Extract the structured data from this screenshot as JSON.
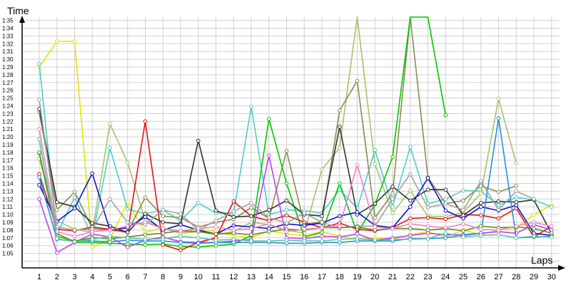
{
  "chart_data": {
    "type": "line",
    "title": "",
    "xlabel": "Laps",
    "ylabel": "Time",
    "x": [
      1,
      2,
      3,
      4,
      5,
      6,
      7,
      8,
      9,
      10,
      11,
      12,
      13,
      14,
      15,
      16,
      17,
      18,
      19,
      20,
      21,
      22,
      23,
      24,
      25,
      26,
      27,
      28,
      29,
      30
    ],
    "ylim_seconds": [
      63,
      98
    ],
    "y_ticks": [
      "1:05",
      "1:06",
      "1:07",
      "1:08",
      "1:09",
      "1:10",
      "1:11",
      "1:12",
      "1:13",
      "1:14",
      "1:15",
      "1:16",
      "1:17",
      "1:18",
      "1:19",
      "1:20",
      "1:21",
      "1:22",
      "1:23",
      "1:24",
      "1:25",
      "1:26",
      "1:27",
      "1:28",
      "1:29",
      "1:30",
      "1:31",
      "1:32",
      "1:33",
      "1:34",
      "1:35"
    ],
    "grid": true,
    "series": [
      {
        "color": "#e6e600",
        "times": [
          "1:29.0",
          "1:32.3",
          "1:32.3",
          "1:05.8",
          "1:06.8",
          "1:11.6",
          "1:07.7",
          "1:08.3",
          "1:07.6",
          "1:08.2",
          "1:07.8",
          "1:07.3",
          "1:07.0",
          "1:07.9",
          "1:07.5",
          "1:07.3",
          "1:07.8",
          "1:07.2",
          "1:06.8",
          "1:07.0",
          "1:06.8",
          "1:07.4",
          "1:07.8",
          "1:07.1",
          "1:08.0",
          "1:07.4",
          "1:08.0",
          "1:08.3",
          "1:10.0",
          "1:11.2"
        ]
      },
      {
        "color": "#4dcccc",
        "times": [
          "1:29.4",
          "1:07.5",
          "1:12.2",
          "1:07.1",
          "1:18.6",
          "1:10.7",
          "1:10.1",
          "1:10.6",
          "1:09.2",
          "1:11.5",
          "1:10.2",
          "1:10.2",
          "1:23.9",
          "1:10.0",
          "1:10.6",
          "1:10.5",
          "1:10.2",
          "1:13.2",
          "1:10.8",
          "1:18.3",
          "1:11.0",
          "1:18.7",
          "1:11.4",
          "1:12.0",
          "1:13.1",
          "1:13.0",
          "1:11.2",
          "1:12.2",
          "1:11.9",
          "1:11.0"
        ]
      },
      {
        "color": "#a6c46a",
        "times": [
          "1:17.2",
          "1:09.2",
          "1:08.1",
          "1:07.7",
          "1:21.7",
          "1:16.7",
          "1:09.2",
          "1:08.2",
          "1:07.6",
          "1:07.8",
          "1:07.4",
          "1:07.8",
          "1:09.0",
          "1:08.7",
          "1:08.0",
          "1:07.6",
          "1:15.8",
          "1:18.6",
          "1:35.5",
          "1:16.5",
          "1:10.2",
          "1:13.1",
          "1:09.8",
          "1:09.7",
          "1:10.3",
          "1:12.7",
          "1:24.9",
          "1:16.6",
          "",
          ""
        ]
      },
      {
        "color": "#8c8c50",
        "times": [
          "1:23.2",
          "1:10.6",
          "1:12.9",
          "1:08.2",
          "1:08.0",
          "1:07.8",
          "1:12.2",
          "1:09.8",
          "1:09.6",
          "1:08.4",
          "1:09.0",
          "1:09.4",
          "1:10.9",
          "1:09.5",
          "1:18.2",
          "1:08.7",
          "1:09.1",
          "1:23.4",
          "1:27.2",
          "1:09.6",
          "1:12.7",
          "1:40.0",
          "1:14.8",
          "1:11.4",
          "1:11.8",
          "1:13.7",
          "1:12.9",
          "1:13.7",
          "",
          ""
        ]
      },
      {
        "color": "#00c800",
        "times": [
          "1:17.9",
          "1:07.6",
          "1:06.4",
          "1:06.4",
          "1:06.3",
          "1:06.2",
          "1:06.1",
          "1:06.2",
          "1:05.9",
          "1:05.8",
          "1:06.0",
          "1:06.2",
          "1:07.3",
          "1:22.3",
          "1:14.0",
          "1:07.1",
          "1:07.7",
          "1:14.0",
          "1:07.6",
          "1:11.3",
          "1:17.4",
          "1:45.0",
          "1:45.0",
          "1:22.8",
          "",
          "",
          "",
          "",
          "",
          ""
        ]
      },
      {
        "color": "#e01414",
        "times": [
          "1:15.2",
          "1:08.1",
          "1:07.9",
          "1:08.4",
          "1:08.1",
          "1:07.7",
          "1:22.0",
          "1:06.1",
          "1:05.4",
          "1:06.4",
          "1:07.0",
          "1:11.7",
          "1:09.8",
          "1:09.2",
          "1:09.9",
          "1:09.0",
          "1:08.3",
          "1:08.9",
          "1:08.1",
          "1:07.9",
          "1:08.3",
          "1:09.5",
          "1:09.6",
          "1:09.4",
          "1:10.0",
          "1:09.9",
          "1:09.5",
          "1:10.8",
          "1:07.1",
          "1:08.5"
        ]
      },
      {
        "color": "#333333",
        "times": [
          "1:23.6",
          "1:11.6",
          "1:11.0",
          "1:08.9",
          "1:08.5",
          "1:07.7",
          "1:10.1",
          "1:09.0",
          "1:08.8",
          "1:19.5",
          "1:10.5",
          "1:09.7",
          "1:09.8",
          "1:10.6",
          "1:11.8",
          "1:10.0",
          "1:09.8",
          "1:21.3",
          "1:10.0",
          "1:11.4",
          "1:13.6",
          "1:11.8",
          "1:13.2",
          "1:13.2",
          "1:09.9",
          "1:11.5",
          "1:11.7",
          "1:11.6",
          "1:11.9",
          "1:07.5"
        ]
      },
      {
        "color": "#1010c8",
        "times": [
          "1:13.8",
          "1:09.1",
          "1:10.8",
          "1:15.3",
          "1:08.0",
          "1:08.3",
          "1:09.7",
          "1:08.0",
          "1:08.7",
          "1:08.0",
          "1:07.5",
          "1:08.6",
          "1:08.4",
          "1:08.2",
          "1:08.8",
          "1:08.6",
          "1:08.9",
          "1:09.8",
          "1:10.3",
          "1:08.6",
          "1:08.3",
          "1:11.0",
          "1:14.7",
          "1:10.5",
          "1:09.5",
          "1:11.0",
          "1:10.5",
          "1:11.2",
          "1:07.6",
          "1:07.3"
        ]
      },
      {
        "color": "#c040f0",
        "times": [
          "1:12.0",
          "1:05.1",
          "1:06.4",
          "1:07.5",
          "1:07.1",
          "1:05.8",
          "1:06.7",
          "1:07.1",
          "1:06.5",
          "1:06.4",
          "1:06.4",
          "1:06.6",
          "1:06.8",
          "1:17.6",
          "1:07.0",
          "1:06.9",
          "1:07.2",
          "1:07.1",
          "1:07.5",
          "1:06.7",
          "1:07.0",
          "1:07.3",
          "1:07.6",
          "1:07.4",
          "1:07.4",
          "1:07.6",
          "1:07.8",
          "1:07.6",
          "1:08.7",
          "1:08.0"
        ]
      },
      {
        "color": "#2090e0",
        "times": [
          "1:14.8",
          "1:06.8",
          "1:06.6",
          "1:06.6",
          "1:06.5",
          "1:06.7",
          "1:06.6",
          "1:06.6",
          "1:06.4",
          "1:06.3",
          "1:06.4",
          "1:06.4",
          "1:06.4",
          "1:06.4",
          "1:06.3",
          "1:06.3",
          "1:06.4",
          "1:06.4",
          "1:06.6",
          "1:06.6",
          "1:06.6",
          "1:06.9",
          "1:06.9",
          "1:07.0",
          "1:07.3",
          "1:07.6",
          "1:22.4",
          "1:07.0",
          "1:07.1",
          "1:07.2"
        ]
      },
      {
        "color": "#a0a0a0",
        "times": [
          "1:24.8",
          "1:08.4",
          "1:08.0",
          "1:08.1",
          "1:12.0",
          "1:09.0",
          "1:08.7",
          "1:10.6",
          "1:10.1",
          "1:08.0",
          "1:09.2",
          "1:10.4",
          "1:11.5",
          "1:09.6",
          "1:08.9",
          "1:10.2",
          "1:09.0",
          "1:08.3",
          "1:08.5",
          "1:08.5",
          "1:12.0",
          "1:15.2",
          "1:10.9",
          "1:11.4",
          "1:10.6",
          "1:14.3",
          "1:10.6",
          "1:13.0",
          "1:12.0",
          ""
        ]
      },
      {
        "color": "#5a8c28",
        "times": [
          "1:18.0",
          "1:07.2",
          "1:06.6",
          "1:07.0",
          "1:06.9",
          "1:07.1",
          "1:07.4",
          "1:07.6",
          "1:07.9",
          "1:07.8",
          "1:07.5",
          "1:07.6",
          "1:07.4",
          "1:07.8",
          "1:08.1",
          "1:08.0",
          "1:08.3",
          "1:08.3",
          "1:08.4",
          "1:08.0",
          "1:08.2",
          "1:08.2",
          "1:08.0",
          "1:08.2",
          "1:07.9",
          "1:08.5",
          "1:08.3",
          "1:08.4",
          "1:08.2",
          "1:07.6"
        ]
      },
      {
        "color": "#f080c8",
        "times": [
          "1:21.0",
          "1:07.8",
          "1:07.2",
          "1:07.8",
          "1:08.0",
          "1:08.5",
          "1:09.0",
          "1:08.2",
          "1:07.9",
          "1:08.2",
          "1:08.4",
          "1:08.0",
          "1:08.2",
          "1:08.8",
          "1:07.8",
          "1:08.1",
          "1:08.3",
          "1:08.5",
          "1:16.4",
          "1:08.4",
          "1:08.2",
          "1:08.8",
          "1:08.5",
          "1:08.3",
          "1:08.8",
          "1:08.1",
          "1:08.0",
          "1:08.5",
          "1:09.0",
          "1:08.5"
        ]
      },
      {
        "color": "#60c0a0",
        "times": [
          "1:19.7",
          "1:06.9",
          "1:06.5",
          "1:06.8",
          "1:07.2",
          "1:07.0",
          "1:06.8",
          "1:06.9",
          "1:07.2",
          "1:07.0",
          "1:06.7",
          "1:06.8",
          "1:06.6",
          "1:06.6",
          "1:06.7",
          "1:06.6",
          "1:06.6",
          "1:06.8",
          "1:06.9",
          "1:06.7",
          "1:06.8",
          "1:06.8",
          "1:06.9",
          "1:07.6",
          "1:07.1",
          "1:07.3",
          "1:07.4",
          "1:07.0",
          "1:07.2",
          "1:07.1"
        ]
      }
    ]
  }
}
